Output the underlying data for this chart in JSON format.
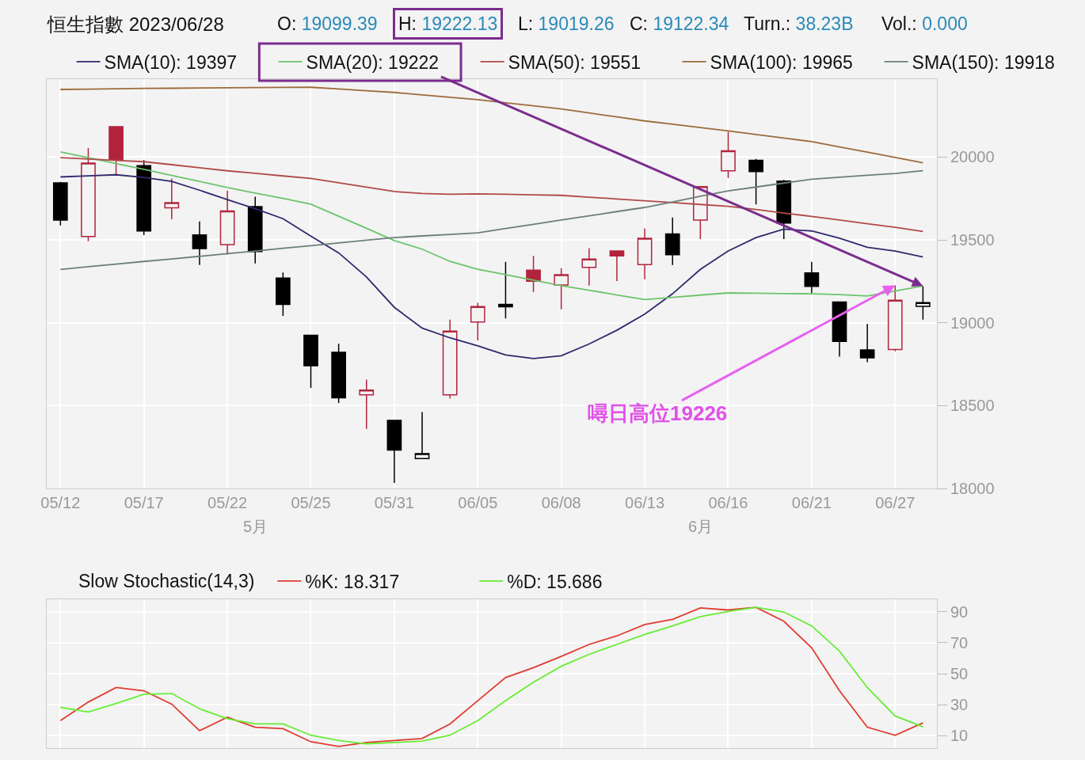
{
  "chart_data": [
    {
      "type": "candlestick",
      "title": "恒生指數 2023/06/28",
      "annotations": [
        "O: 19099.39",
        "H: 19222.13",
        "L: 19019.26",
        "C: 19122.34",
        "Turn.: 38.23B",
        "Vol.: 0.000",
        "5月",
        "6月",
        {
          "text": "噚日高位19226",
          "x": "06/27",
          "y": 19226
        }
      ],
      "categories": [
        "05/12",
        null,
        null,
        "05/17",
        null,
        null,
        "05/22",
        null,
        null,
        "05/25",
        null,
        null,
        "05/31",
        null,
        null,
        "06/05",
        null,
        null,
        "06/08",
        null,
        null,
        "06/13",
        null,
        null,
        "06/16",
        null,
        null,
        "06/21",
        null,
        null,
        "06/27",
        null
      ],
      "ohlc": [
        [
          19844,
          19850,
          19587,
          19620
        ],
        [
          19520,
          20054,
          19492,
          19963
        ],
        [
          20183,
          20183,
          19890,
          19981
        ],
        [
          19948,
          19981,
          19529,
          19554
        ],
        [
          19694,
          19871,
          19624,
          19725
        ],
        [
          19530,
          19611,
          19349,
          19448
        ],
        [
          19472,
          19798,
          19410,
          19675
        ],
        [
          19701,
          19761,
          19358,
          19430
        ],
        [
          19270,
          19303,
          19041,
          19111
        ],
        [
          18924,
          18924,
          18607,
          18741
        ],
        [
          18822,
          18873,
          18516,
          18547
        ],
        [
          18565,
          18657,
          18360,
          18594
        ],
        [
          18411,
          18411,
          18034,
          18232
        ],
        [
          18180,
          18461,
          18180,
          18210
        ],
        [
          18565,
          19019,
          18543,
          18950
        ],
        [
          19004,
          19120,
          18894,
          19098
        ],
        [
          19111,
          19367,
          19026,
          19096
        ],
        [
          19318,
          19404,
          19186,
          19250
        ],
        [
          19228,
          19329,
          19081,
          19290
        ],
        [
          19334,
          19450,
          19224,
          19384
        ],
        [
          19433,
          19433,
          19252,
          19404
        ],
        [
          19351,
          19569,
          19263,
          19510
        ],
        [
          19536,
          19635,
          19349,
          19411
        ],
        [
          19620,
          19822,
          19505,
          19822
        ],
        [
          19917,
          20152,
          19873,
          20038
        ],
        [
          19980,
          19989,
          19714,
          19912
        ],
        [
          19855,
          19862,
          19505,
          19602
        ],
        [
          19301,
          19367,
          19180,
          19219
        ],
        [
          19125,
          19125,
          18795,
          18887
        ],
        [
          18836,
          18993,
          18762,
          18788
        ],
        [
          18839,
          19226,
          18828,
          19136
        ],
        [
          19099,
          19222,
          19019,
          19122
        ]
      ],
      "colors": [
        "#000000",
        "#b2243d",
        "#b2243d",
        "#000000",
        "#b2243d",
        "#000000",
        "#b2243d",
        "#000000",
        "#000000",
        "#000000",
        "#000000",
        "#b2243d",
        "#000000",
        "#000000",
        "#b2243d",
        "#b2243d",
        "#000000",
        "#b2243d",
        "#b2243d",
        "#b2243d",
        "#b2243d",
        "#b2243d",
        "#000000",
        "#b2243d",
        "#b2243d",
        "#000000",
        "#000000",
        "#000000",
        "#000000",
        "#000000",
        "#b2243d",
        "#000000"
      ],
      "series": [
        {
          "name": "SMA(10): 19397",
          "type": "line",
          "color": "#2e2a6e",
          "values": [
            19880,
            19887,
            19893,
            19877,
            19853,
            19800,
            19743,
            19688,
            19628,
            19523,
            19422,
            19276,
            19093,
            18968,
            18909,
            18861,
            18806,
            18784,
            18801,
            18872,
            18955,
            19052,
            19175,
            19322,
            19433,
            19514,
            19565,
            19554,
            19510,
            19455,
            19433,
            19397
          ]
        },
        {
          "name": "SMA(20): 19222",
          "type": "line",
          "color": "#6cc46c",
          "values": [
            20031,
            19996,
            19961,
            19926,
            19889,
            19853,
            19816,
            19783,
            19750,
            19716,
            19643,
            19570,
            19496,
            19444,
            19370,
            19323,
            19290,
            19257,
            19224,
            19196,
            19168,
            19140,
            19153,
            19167,
            19180,
            19178,
            19176,
            19175,
            19170,
            19162,
            19191,
            19222
          ]
        },
        {
          "name": "SMA(50): 19551",
          "type": "line",
          "color": "#b04a48",
          "values": [
            19996,
            19988,
            19980,
            19972,
            19954,
            19935,
            19917,
            19902,
            19886,
            19871,
            19845,
            19818,
            19792,
            19780,
            19775,
            19778,
            19775,
            19772,
            19769,
            19758,
            19747,
            19736,
            19725,
            19714,
            19703,
            19683,
            19662,
            19642,
            19620,
            19598,
            19576,
            19551
          ]
        },
        {
          "name": "SMA(100): 19965",
          "type": "line",
          "color": "#9c6b3a",
          "values": [
            20408,
            20410,
            20412,
            20414,
            20415,
            20417,
            20418,
            20419,
            20420,
            20421,
            20411,
            20400,
            20390,
            20375,
            20361,
            20346,
            20327,
            20309,
            20290,
            20266,
            20242,
            20218,
            20198,
            20178,
            20158,
            20136,
            20115,
            20093,
            20061,
            20030,
            19998,
            19965
          ]
        },
        {
          "name": "SMA(150): 19918",
          "type": "line",
          "color": "#6b7f7a",
          "values": [
            19322,
            19338,
            19354,
            19370,
            19385,
            19401,
            19417,
            19433,
            19449,
            19465,
            19482,
            19498,
            19514,
            19524,
            19533,
            19543,
            19569,
            19594,
            19620,
            19645,
            19671,
            19696,
            19729,
            19763,
            19796,
            19819,
            19843,
            19866,
            19878,
            19890,
            19901,
            19918
          ]
        }
      ],
      "ylim": [
        18000,
        20470
      ],
      "yticks": [
        18000,
        18500,
        19000,
        19500,
        20000
      ],
      "grid": true,
      "legend": "top"
    },
    {
      "type": "line",
      "title": "Slow Stochastic(14,3)",
      "categories": [
        null,
        null,
        null,
        null,
        null,
        null,
        null,
        null,
        null,
        null,
        null,
        null,
        null,
        null,
        null,
        null,
        null,
        null,
        null,
        null,
        null,
        null,
        null,
        null,
        null,
        null,
        null,
        null,
        null,
        null,
        null,
        null
      ],
      "series": [
        {
          "name": "%K: 18.317",
          "color": "#e03c31",
          "values": [
            19.7,
            31.7,
            41.1,
            39.0,
            30.4,
            13.3,
            21.9,
            15.5,
            14.6,
            6.1,
            3.1,
            5.6,
            6.9,
            8.2,
            17.6,
            32.6,
            47.5,
            53.9,
            61.2,
            68.9,
            74.4,
            81.7,
            85.1,
            92.4,
            91.1,
            92.8,
            83.8,
            66.7,
            39.0,
            15.5,
            10.3,
            18.3
          ]
        },
        {
          "name": "%D: 15.686",
          "color": "#66ee33",
          "values": [
            28.3,
            25.3,
            30.8,
            36.8,
            37.2,
            27.4,
            21.0,
            17.6,
            17.6,
            10.3,
            6.9,
            4.8,
            5.6,
            6.5,
            10.3,
            19.7,
            32.6,
            44.5,
            54.8,
            62.5,
            68.9,
            75.3,
            80.8,
            86.8,
            90.2,
            92.8,
            89.8,
            80.8,
            64.6,
            41.1,
            22.7,
            15.7
          ]
        }
      ],
      "ylim": [
        2,
        98
      ],
      "yticks": [
        10,
        30,
        50,
        70,
        90
      ],
      "grid": true,
      "legend": "top",
      "tick_labels": "y"
    }
  ]
}
